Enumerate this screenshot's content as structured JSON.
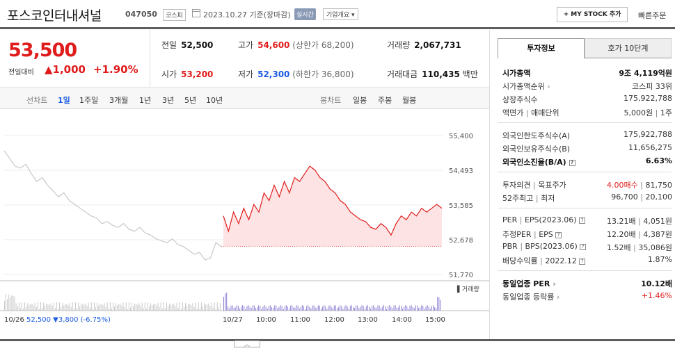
{
  "header": {
    "stock_name": "포스코인터내셔널",
    "stock_code": "047050",
    "market": "코스피",
    "date": "2023.10.27 기준(장마감)",
    "realtime": "실시간",
    "overview": "기업개요",
    "mystock": "+ MY STOCK 추가",
    "order": "빠른주문"
  },
  "price": {
    "current": "53,500",
    "change_label": "전일대비",
    "change": "▲1,000",
    "change_pct": "+1.90%"
  },
  "stats": {
    "prev_label": "전일",
    "prev": "52,500",
    "high_label": "고가",
    "high": "54,600",
    "high_sub": "(상한가 68,200)",
    "volume_label": "거래량",
    "volume": "2,067,731",
    "open_label": "시가",
    "open": "53,200",
    "low_label": "저가",
    "low": "52,300",
    "low_sub": "(하한가 36,800)",
    "amount_label": "거래대금",
    "amount": "110,435",
    "amount_unit": "백만"
  },
  "toolbar": {
    "line_label": "선차트",
    "periods": [
      "1일",
      "1주일",
      "3개월",
      "1년",
      "3년",
      "5년",
      "10년"
    ],
    "candle_label": "봉차트",
    "candles": [
      "일봉",
      "주봉",
      "월봉"
    ]
  },
  "chart_data": {
    "type": "line",
    "y_ticks": [
      "55,400",
      "54,493",
      "53,585",
      "52,678",
      "51,770"
    ],
    "ylim": [
      51770,
      55400
    ],
    "volume_label": "거래량",
    "x_labels": [
      "10/26",
      "10/27",
      "10:00",
      "11:00",
      "12:00",
      "13:00",
      "14:00",
      "15:00"
    ],
    "prev_close_label": "52,500 ▼3,800 (-6.75%)",
    "series": [
      {
        "values": [
          55000,
          54800,
          54600,
          54550,
          54650,
          54400,
          54200,
          54300,
          54100,
          53950,
          53800,
          53900,
          53700,
          53600,
          53500,
          53400,
          53300,
          53250,
          53100,
          53150,
          53050,
          53000,
          53100,
          52950,
          52900,
          53000,
          52850,
          52800,
          52700,
          52650,
          52600,
          52700,
          52550,
          52500,
          52400,
          52300,
          52350,
          52150,
          52200,
          52600,
          52500
        ]
      },
      {
        "values": [
          53300,
          52900,
          53400,
          53100,
          53500,
          53200,
          53600,
          53400,
          53900,
          53700,
          54100,
          53800,
          54200,
          53900,
          54300,
          54200,
          54400,
          54600,
          54500,
          54300,
          54200,
          54000,
          53900,
          53700,
          53600,
          53400,
          53300,
          53200,
          53150,
          53000,
          52950,
          53100,
          53000,
          52800,
          53100,
          53300,
          53200,
          53400,
          53300,
          53500,
          53400,
          53500,
          53600,
          53500
        ]
      }
    ]
  },
  "side": {
    "tab_on": "투자정보",
    "tab_off": "호가 10단계",
    "mcap_label": "시가총액",
    "mcap": "9조 4,119억원",
    "mcap_rank_label": "시가총액순위",
    "mcap_rank": "코스피 33위",
    "shares_label": "상장주식수",
    "shares": "175,922,788",
    "par_label": "액면가",
    "trade_unit_label": "매매단위",
    "par": "5,000원",
    "unit": "1주",
    "foreign_limit_label": "외국인한도주식수(A)",
    "foreign_limit": "175,922,788",
    "foreign_hold_label": "외국인보유주식수(B)",
    "foreign_hold": "11,656,275",
    "foreign_ratio_label": "외국인소진율(B/A)",
    "foreign_ratio": "6.63%",
    "opinion_label": "투자의견",
    "target_label": "목표주가",
    "opinion": "4.00매수",
    "target": "81,750",
    "w52_label": "52주최고",
    "w52_low_label": "최저",
    "w52_high": "96,700",
    "w52_low": "20,100",
    "per_label": "PER",
    "eps_label": "EPS(2023.06)",
    "per": "13.21배",
    "eps": "4,051원",
    "eper_label": "추정PER",
    "eeps_label": "EPS",
    "eper": "12.20배",
    "eeps": "4,387원",
    "pbr_label": "PBR",
    "bps_label": "BPS(2023.06)",
    "pbr": "1.52배",
    "bps": "35,086원",
    "div_label": "배당수익률",
    "div_date": "2022.12",
    "div": "1.87%",
    "sector_per_label": "동일업종 PER",
    "sector_per": "10.12배",
    "sector_chg_label": "동일업종 등락률",
    "sector_chg": "+1.46%"
  }
}
